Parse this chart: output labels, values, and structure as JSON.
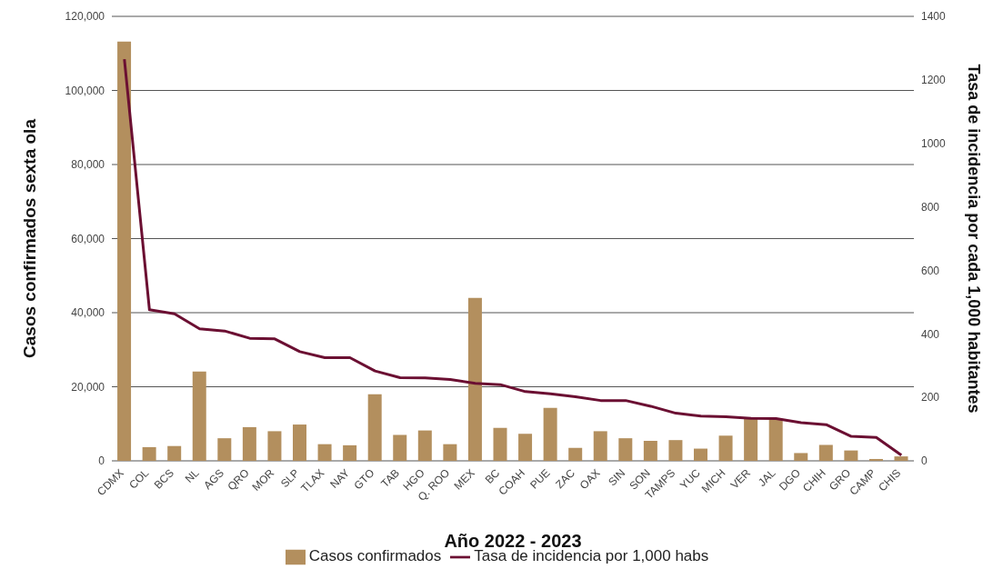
{
  "chart_data": {
    "type": "bar",
    "xlabel": "Año  2022 - 2023",
    "ylabel": "Casos confirmados sexta ola",
    "y2label": "Tasa de incidencia por cada 1,000 habitantes",
    "categories": [
      "CDMX",
      "COL",
      "BCS",
      "NL",
      "AGS",
      "QRO",
      "MOR",
      "SLP",
      "TLAX",
      "NAY",
      "GTO",
      "TAB",
      "HGO",
      "Q. ROO",
      "MEX",
      "BC",
      "COAH",
      "PUE",
      "ZAC",
      "OAX",
      "SIN",
      "SON",
      "TAMPS",
      "YUC",
      "MICH",
      "VER",
      "JAL",
      "DGO",
      "CHIH",
      "GRO",
      "CAMP",
      "CHIS"
    ],
    "series": [
      {
        "name": "Casos confirmados",
        "color": "#b38f5e",
        "values": [
          113200,
          3700,
          4000,
          24100,
          6100,
          9100,
          8000,
          9800,
          4500,
          4200,
          18000,
          7000,
          8200,
          4500,
          44000,
          8900,
          7300,
          14300,
          3500,
          8000,
          6100,
          5400,
          5600,
          3300,
          6800,
          11300,
          11300,
          2100,
          4300,
          2800,
          500,
          1200
        ]
      },
      {
        "name": "Tasa de incidencia por 1,000 habs",
        "type": "line",
        "axis": "y2",
        "color": "#6b0f32",
        "values": [
          1265,
          476,
          463,
          416,
          409,
          386,
          384,
          344,
          325,
          325,
          283,
          262,
          261,
          256,
          244,
          240,
          218,
          211,
          202,
          190,
          190,
          172,
          150,
          141,
          139,
          134,
          133,
          120,
          114,
          77,
          74,
          18
        ]
      }
    ],
    "ylim": [
      0,
      120000
    ],
    "yticks": [
      {
        "value": 0,
        "label": "0"
      },
      {
        "value": 20000,
        "label": "20,000"
      },
      {
        "value": 40000,
        "label": "40,000"
      },
      {
        "value": 60000,
        "label": "60,000"
      },
      {
        "value": 80000,
        "label": "80,000"
      },
      {
        "value": 100000,
        "label": "100,000"
      },
      {
        "value": 120000,
        "label": "120,000"
      }
    ],
    "y2lim": [
      0,
      1400
    ],
    "y2ticks": [
      0,
      200,
      400,
      600,
      800,
      1000,
      1200,
      1400
    ],
    "grid": "y",
    "legend": "bottom",
    "marker": "none",
    "line_style": "solid"
  }
}
